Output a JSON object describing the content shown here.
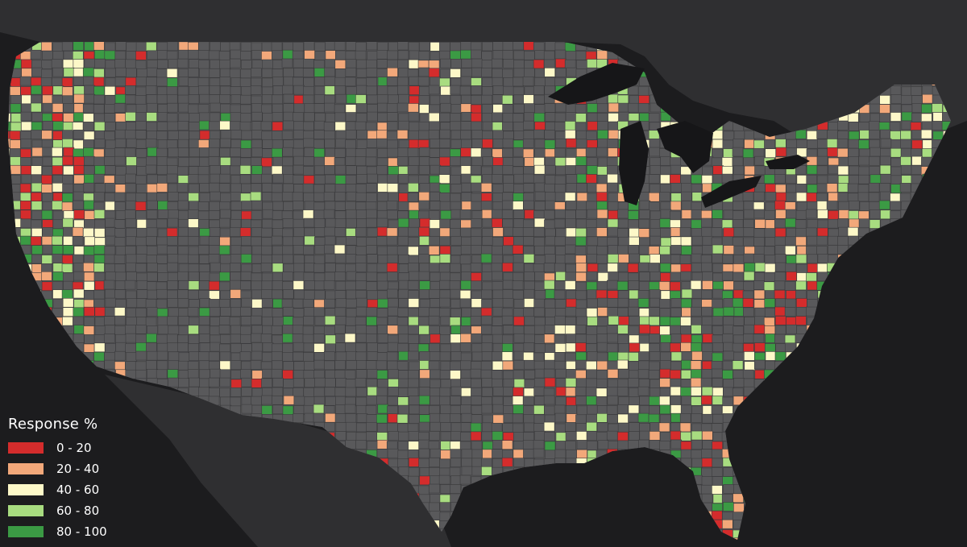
{
  "legend": {
    "title": "Response %",
    "items": [
      {
        "label": "0 - 20",
        "color": "#d42c2c"
      },
      {
        "label": "20 - 40",
        "color": "#f2a87a"
      },
      {
        "label": "40 - 60",
        "color": "#fdf8c8"
      },
      {
        "label": "60 - 80",
        "color": "#a8dc80"
      },
      {
        "label": "80 - 100",
        "color": "#3b9a44"
      }
    ]
  },
  "colors": {
    "ocean": "#1c1c1e",
    "land_outside": "#2f2f31",
    "lakes": "#161618",
    "county_no_data": "#59595b",
    "county_border": "#3c3c3e"
  }
}
